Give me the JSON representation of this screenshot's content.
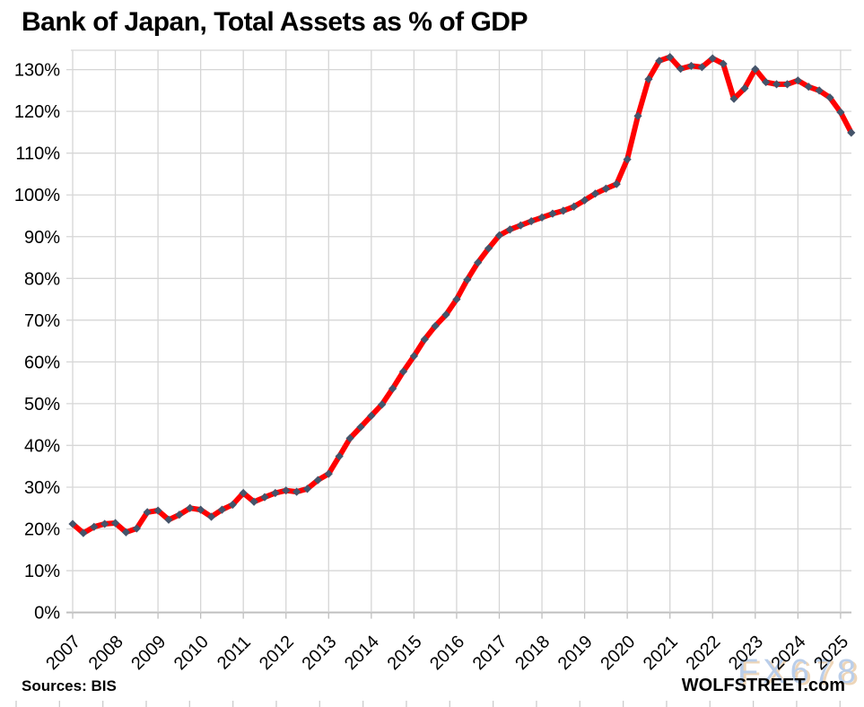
{
  "page": {
    "background": "#FFFFFF"
  },
  "header": {
    "title": "Bank of Japan, Total Assets as % of GDP"
  },
  "footer": {
    "sources_label": "Sources: BIS",
    "brand_label": "WOLFSTREET.com",
    "watermark": "FX678"
  },
  "colors": {
    "line": "#FF0000",
    "marker": "#44546A",
    "gridline": "#D6D6D6",
    "axis": "#BFBFBF",
    "text": "#000000",
    "watermark_fill": "#B7CCE9",
    "watermark_shadow": "#EDD3B5"
  },
  "chart_data": {
    "type": "line",
    "title": "Bank of Japan, Total Assets as % of GDP",
    "xlabel": "",
    "ylabel": "",
    "grid": true,
    "legend": "none",
    "frequency": "quarterly",
    "start_period": "2007-Q1",
    "end_period": "2025-Q2",
    "x_tick_labels": [
      "2007",
      "2008",
      "2009",
      "2010",
      "2011",
      "2012",
      "2013",
      "2014",
      "2015",
      "2016",
      "2017",
      "2018",
      "2019",
      "2020",
      "2021",
      "2022",
      "2023",
      "2024",
      "2025"
    ],
    "y_tick_values": [
      0,
      10,
      20,
      30,
      40,
      50,
      60,
      70,
      80,
      90,
      100,
      110,
      120,
      130
    ],
    "y_tick_labels": [
      "0%",
      "10%",
      "20%",
      "30%",
      "40%",
      "50%",
      "60%",
      "70%",
      "80%",
      "90%",
      "100%",
      "110%",
      "120%",
      "130%"
    ],
    "ylim": [
      0,
      134.7
    ],
    "series": [
      {
        "name": "Bank of Japan total assets as % of GDP",
        "line_color": "#FF0000",
        "marker_color": "#44546A",
        "marker": "diamond",
        "values": [
          21.2,
          19.0,
          20.5,
          21.2,
          21.4,
          19.2,
          20.1,
          24.0,
          24.4,
          22.2,
          23.4,
          25.0,
          24.6,
          22.9,
          24.6,
          25.8,
          28.6,
          26.5,
          27.6,
          28.6,
          29.2,
          28.9,
          29.6,
          31.7,
          33.2,
          37.4,
          41.7,
          44.4,
          47.1,
          49.8,
          53.6,
          57.7,
          61.4,
          65.4,
          68.6,
          71.3,
          75.0,
          79.7,
          83.8,
          87.2,
          90.3,
          91.7,
          92.7,
          93.7,
          94.6,
          95.5,
          96.2,
          97.2,
          98.7,
          100.3,
          101.5,
          102.6,
          108.5,
          118.9,
          127.7,
          132.1,
          133.0,
          130.2,
          130.9,
          130.6,
          132.7,
          131.4,
          123.0,
          125.5,
          130.1,
          127.0,
          126.5,
          126.5,
          127.4,
          125.9,
          125.0,
          123.3,
          119.8,
          114.9
        ]
      }
    ]
  }
}
